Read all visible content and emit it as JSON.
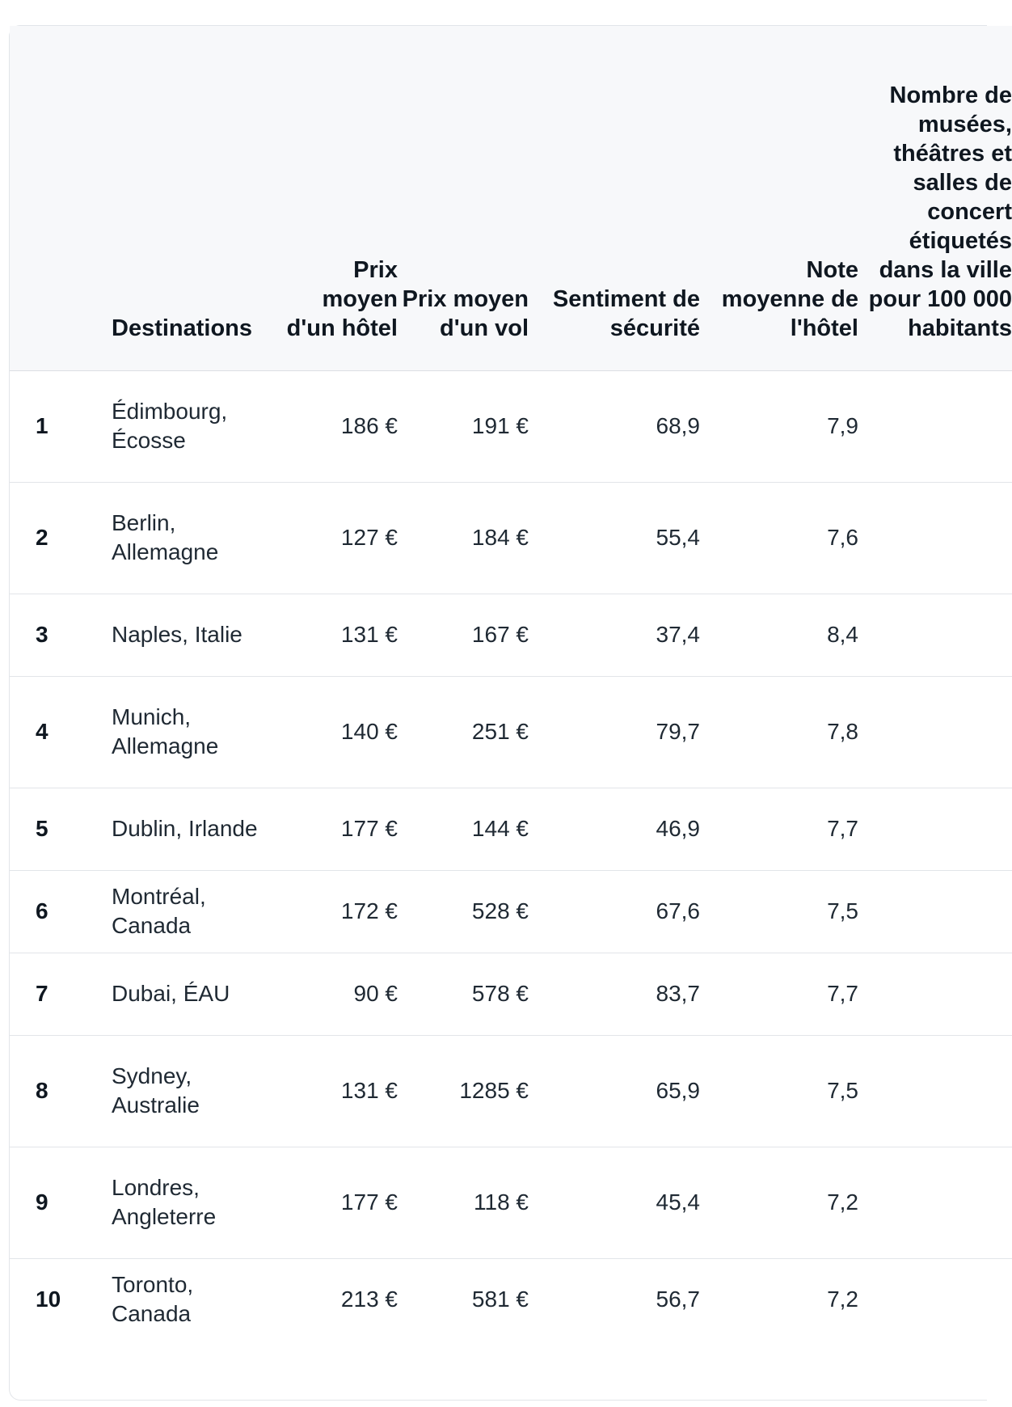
{
  "headers": {
    "rank": "",
    "destinations": "Destinations",
    "hotel_price": "Prix moyen d'un hôtel",
    "flight_price": "Prix moyen d'un vol",
    "safety": "Sentiment de sécurité",
    "hotel_rating": "Note moyenne de l'hôtel",
    "culture": "Nombre de musées, théâtres et salles de concert étiquetés dans la ville pour 100 000 habitants"
  },
  "rows": [
    {
      "rank": "1",
      "destination": "Édimbourg, Écosse",
      "hotel_price": "186 €",
      "flight_price": "191 €",
      "safety": "68,9",
      "hotel_rating": "7,9"
    },
    {
      "rank": "2",
      "destination": "Berlin, Allemagne",
      "hotel_price": "127 €",
      "flight_price": "184 €",
      "safety": "55,4",
      "hotel_rating": "7,6"
    },
    {
      "rank": "3",
      "destination": "Naples, Italie",
      "hotel_price": "131 €",
      "flight_price": "167 €",
      "safety": "37,4",
      "hotel_rating": "8,4"
    },
    {
      "rank": "4",
      "destination": "Munich, Allemagne",
      "hotel_price": "140 €",
      "flight_price": "251 €",
      "safety": "79,7",
      "hotel_rating": "7,8"
    },
    {
      "rank": "5",
      "destination": "Dublin, Irlande",
      "hotel_price": "177 €",
      "flight_price": "144 €",
      "safety": "46,9",
      "hotel_rating": "7,7"
    },
    {
      "rank": "6",
      "destination": "Montréal, Canada",
      "hotel_price": "172 €",
      "flight_price": "528 €",
      "safety": "67,6",
      "hotel_rating": "7,5"
    },
    {
      "rank": "7",
      "destination": "Dubai, ÉAU",
      "hotel_price": "90 €",
      "flight_price": "578 €",
      "safety": "83,7",
      "hotel_rating": "7,7"
    },
    {
      "rank": "8",
      "destination": "Sydney, Australie",
      "hotel_price": "131 €",
      "flight_price": "1285 €",
      "safety": "65,9",
      "hotel_rating": "7,5"
    },
    {
      "rank": "9",
      "destination": "Londres, Angleterre",
      "hotel_price": "177 €",
      "flight_price": "118 €",
      "safety": "45,4",
      "hotel_rating": "7,2"
    },
    {
      "rank": "10",
      "destination": "Toronto, Canada",
      "hotel_price": "213 €",
      "flight_price": "581 €",
      "safety": "56,7",
      "hotel_rating": "7,2"
    }
  ]
}
